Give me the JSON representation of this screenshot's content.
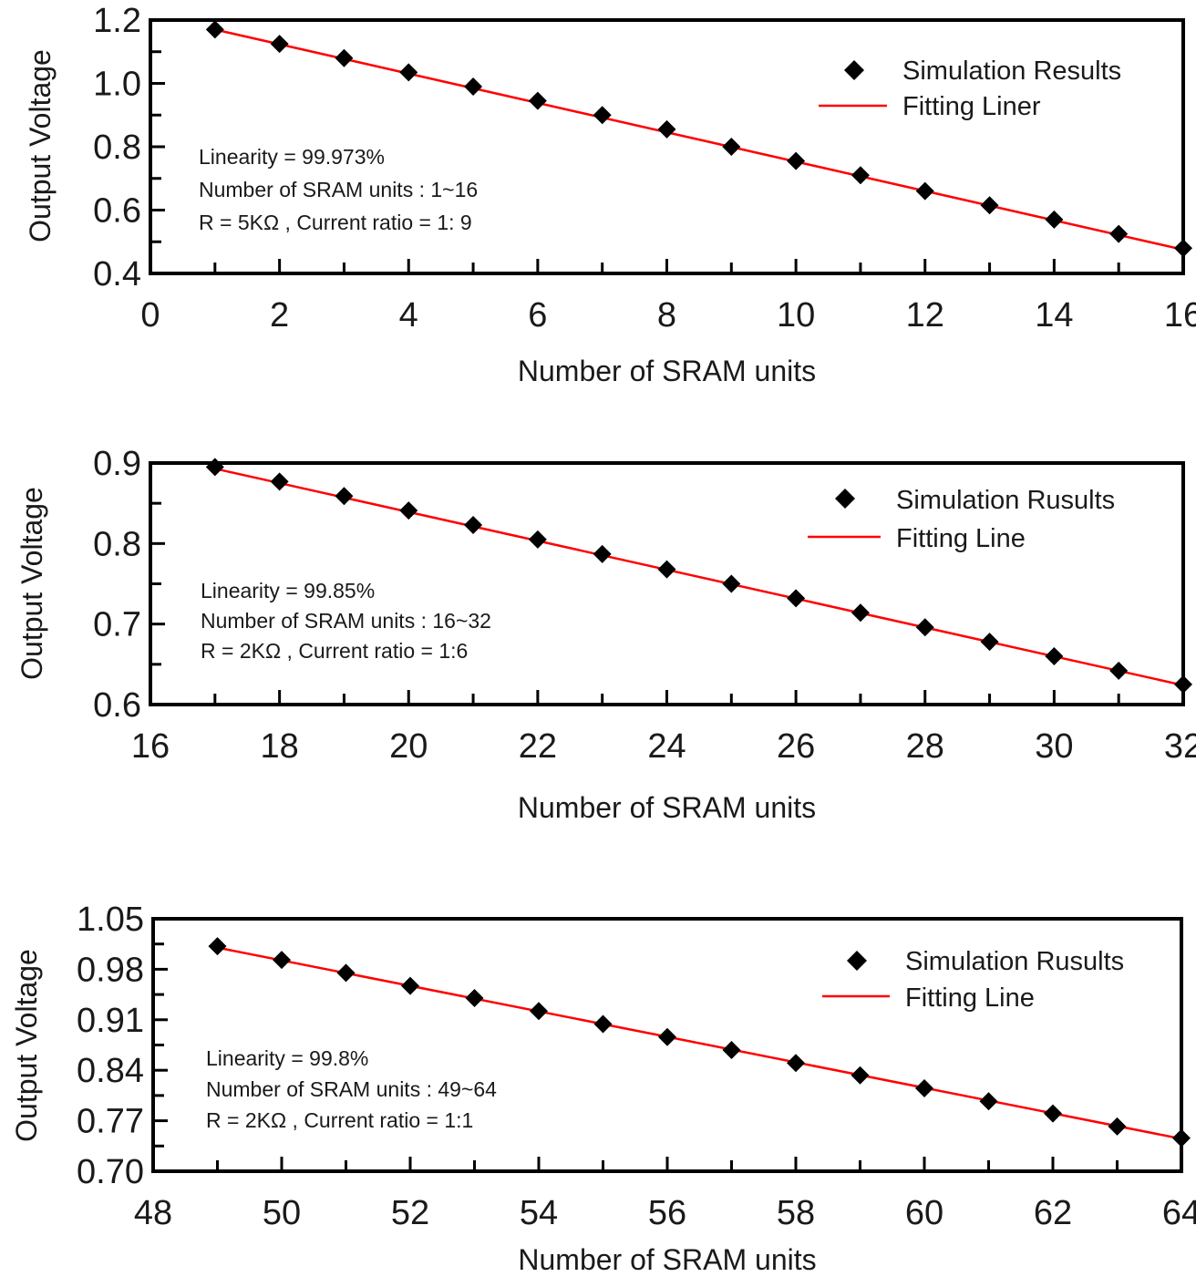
{
  "chart_data": [
    {
      "type": "scatter",
      "xlabel": "Number of SRAM units",
      "ylabel": "Output Voltage",
      "xlim": [
        0,
        16
      ],
      "ylim": [
        0.4,
        1.2
      ],
      "xticks": [
        0,
        2,
        4,
        6,
        8,
        10,
        12,
        14,
        16
      ],
      "xtick_labels": [
        "0",
        "2",
        "4",
        "6",
        "8",
        "10",
        "12",
        "14",
        "16"
      ],
      "yticks": [
        0.4,
        0.6,
        0.8,
        1.0,
        1.2
      ],
      "ytick_labels": [
        "0.4",
        "0.6",
        "0.8",
        "1.0",
        "1.2"
      ],
      "series": [
        {
          "name": "Simulation Results",
          "marker": "diamond",
          "color": "#000000",
          "x": [
            1,
            2,
            3,
            4,
            5,
            6,
            7,
            8,
            9,
            10,
            11,
            12,
            13,
            14,
            15,
            16
          ],
          "y": [
            1.17,
            1.125,
            1.08,
            1.035,
            0.99,
            0.945,
            0.9,
            0.855,
            0.8,
            0.755,
            0.71,
            0.66,
            0.615,
            0.57,
            0.525,
            0.48
          ]
        },
        {
          "name": "Fitting Liner",
          "style": "line",
          "color": "#ff0000",
          "x": [
            1,
            16
          ],
          "y": [
            1.17,
            0.475
          ]
        }
      ],
      "legend_position": "top-right",
      "annotations": [
        "Linearity = 99.973%",
        "Number of SRAM units : 1~16",
        "R = 5KΩ , Current ratio = 1: 9"
      ]
    },
    {
      "type": "scatter",
      "xlabel": "Number of SRAM units",
      "ylabel": "Output Voltage",
      "xlim": [
        16,
        32
      ],
      "ylim": [
        0.6,
        0.9
      ],
      "xticks": [
        16,
        18,
        20,
        22,
        24,
        26,
        28,
        30,
        32
      ],
      "xtick_labels": [
        "16",
        "18",
        "20",
        "22",
        "24",
        "26",
        "28",
        "30",
        "32"
      ],
      "yticks": [
        0.6,
        0.7,
        0.8,
        0.9
      ],
      "ytick_labels": [
        "0.6",
        "0.7",
        "0.8",
        "0.9"
      ],
      "series": [
        {
          "name": "Simulation Rusults",
          "marker": "diamond",
          "color": "#000000",
          "x": [
            17,
            18,
            19,
            20,
            21,
            22,
            23,
            24,
            25,
            26,
            27,
            28,
            29,
            30,
            31,
            32
          ],
          "y": [
            0.895,
            0.877,
            0.859,
            0.841,
            0.823,
            0.805,
            0.787,
            0.768,
            0.75,
            0.732,
            0.714,
            0.696,
            0.678,
            0.66,
            0.642,
            0.625
          ]
        },
        {
          "name": "Fitting Line",
          "style": "line",
          "color": "#ff0000",
          "x": [
            17,
            32
          ],
          "y": [
            0.893,
            0.624
          ]
        }
      ],
      "legend_position": "top-right",
      "annotations": [
        "Linearity = 99.85%",
        "Number of SRAM units : 16~32",
        "R = 2KΩ , Current ratio = 1:6"
      ]
    },
    {
      "type": "scatter",
      "xlabel": "Number of SRAM units",
      "ylabel": "Output Voltage",
      "xlim": [
        48,
        64
      ],
      "ylim": [
        0.7,
        1.05
      ],
      "xticks": [
        48,
        50,
        52,
        54,
        56,
        58,
        60,
        62,
        64
      ],
      "xtick_labels": [
        "48",
        "50",
        "52",
        "54",
        "56",
        "58",
        "60",
        "62",
        "64"
      ],
      "yticks": [
        0.7,
        0.77,
        0.84,
        0.91,
        0.98,
        1.05
      ],
      "ytick_labels": [
        "0.70",
        "0.77",
        "0.84",
        "0.91",
        "0.98",
        "1.05"
      ],
      "series": [
        {
          "name": "Simulation Rusults",
          "marker": "diamond",
          "color": "#000000",
          "x": [
            49,
            50,
            51,
            52,
            53,
            54,
            55,
            56,
            57,
            58,
            59,
            60,
            61,
            62,
            63,
            64
          ],
          "y": [
            1.012,
            0.993,
            0.975,
            0.957,
            0.94,
            0.922,
            0.904,
            0.886,
            0.868,
            0.85,
            0.833,
            0.815,
            0.797,
            0.78,
            0.762,
            0.746
          ]
        },
        {
          "name": "Fitting Line",
          "style": "line",
          "color": "#ff0000",
          "x": [
            49,
            64
          ],
          "y": [
            1.01,
            0.745
          ]
        }
      ],
      "legend_position": "top-right",
      "annotations": [
        "Linearity = 99.8%",
        "Number of SRAM units : 49~64",
        "R = 2KΩ , Current ratio = 1:1"
      ]
    }
  ]
}
